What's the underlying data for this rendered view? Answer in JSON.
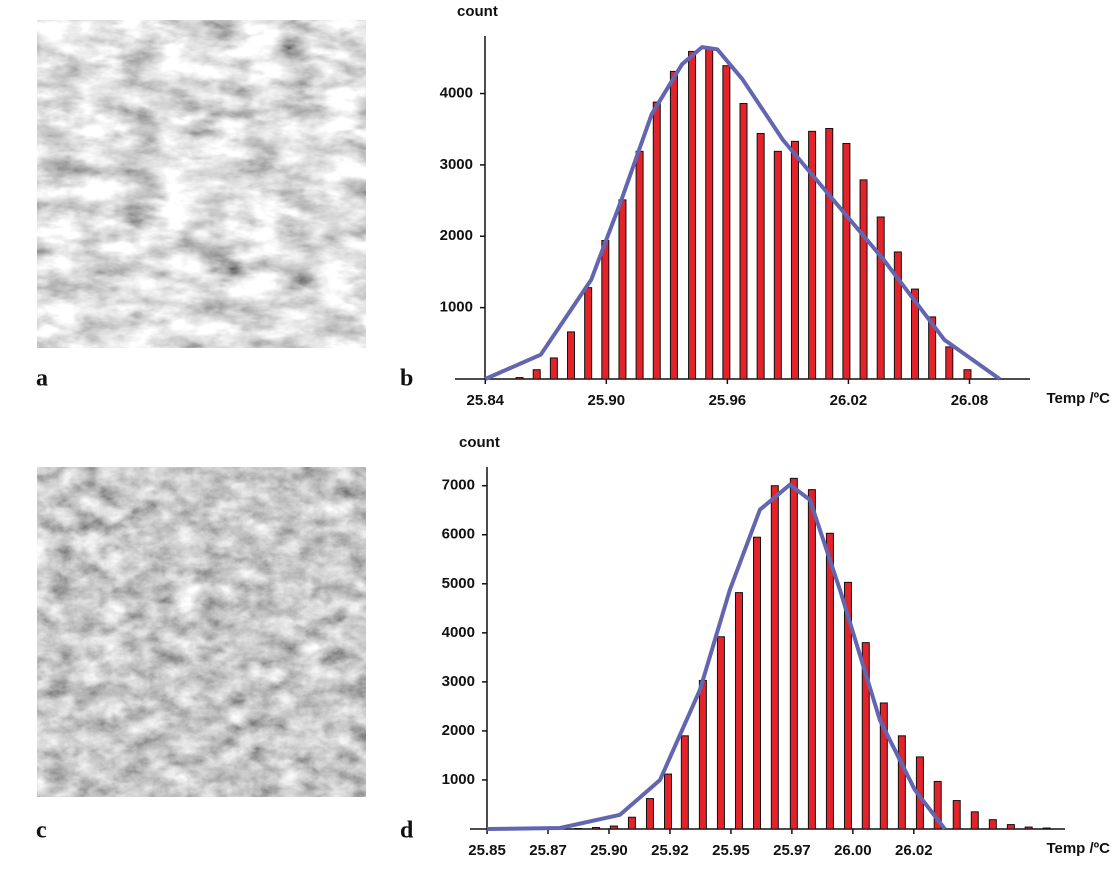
{
  "panel_labels": [
    "a",
    "b",
    "c",
    "d"
  ],
  "chart_data": [
    {
      "type": "bar",
      "ylabel": "count",
      "xlabel": "Temp /ºC",
      "color": "#e2232a",
      "x": [
        25.857,
        25.8655,
        25.874,
        25.8825,
        25.891,
        25.8995,
        25.908,
        25.9165,
        25.925,
        25.9335,
        25.9425,
        25.951,
        25.9595,
        25.968,
        25.9765,
        25.985,
        25.9935,
        26.002,
        26.0105,
        26.019,
        26.0275,
        26.036,
        26.0445,
        26.053,
        26.0615,
        26.07,
        26.079
      ],
      "values": [
        20,
        130,
        295,
        660,
        1280,
        1940,
        2510,
        3190,
        3880,
        4310,
        4590,
        4630,
        4390,
        3860,
        3440,
        3190,
        3330,
        3470,
        3510,
        3300,
        2790,
        2270,
        1780,
        1260,
        870,
        450,
        130
      ],
      "fit": {
        "color": "#6266b0",
        "x": [
          25.84,
          25.8675,
          25.8925,
          25.9075,
          25.9225,
          25.9375,
          25.9475,
          25.955,
          25.9675,
          25.9875,
          26.0125,
          26.0375,
          26.0675,
          26.095
        ],
        "values": [
          0,
          340,
          1390,
          2510,
          3710,
          4410,
          4650,
          4620,
          4200,
          3350,
          2510,
          1670,
          550,
          0
        ]
      },
      "xlim": [
        25.825,
        26.11
      ],
      "ylim": [
        0,
        4750
      ],
      "xticks": [
        25.84,
        {
          "value": 25.9,
          "label": "25.90"
        },
        25.96,
        26.02,
        26.08
      ],
      "yticks": [
        1000,
        2000,
        3000,
        4000
      ]
    },
    {
      "type": "bar",
      "ylabel": "count",
      "xlabel": "Temp /ºC",
      "color": "#e2232a",
      "x": [
        25.8873,
        25.8947,
        25.902,
        25.9094,
        25.9168,
        25.9242,
        25.9311,
        25.9385,
        25.9459,
        25.9533,
        25.9607,
        25.968,
        25.9758,
        25.9832,
        25.9906,
        25.998,
        26.0053,
        26.0127,
        26.0201,
        26.0275,
        26.0348,
        26.0426,
        26.05,
        26.0574,
        26.0648,
        26.0721,
        26.0795
      ],
      "values": [
        10,
        30,
        60,
        240,
        620,
        1120,
        1900,
        3030,
        3920,
        4820,
        5950,
        7000,
        7150,
        6920,
        6030,
        5030,
        3800,
        2570,
        1900,
        1470,
        970,
        580,
        350,
        190,
        90,
        40,
        20
      ],
      "fit": {
        "color": "#6266b0",
        "x": [
          25.85,
          25.8799,
          25.9045,
          25.9209,
          25.9373,
          25.9496,
          25.9619,
          25.9742,
          25.9824,
          25.9947,
          26.0111,
          26.0254,
          26.0377
        ],
        "values": [
          0,
          20,
          290,
          1000,
          2840,
          4880,
          6510,
          7020,
          6710,
          4880,
          2220,
          800,
          0
        ]
      },
      "xlim": [
        25.843,
        26.087
      ],
      "ylim": [
        0,
        7300
      ],
      "xticks": [
        25.85,
        {
          "value": 25.875,
          "label": "25.87"
        },
        {
          "value": 25.9,
          "label": "25.90"
        },
        {
          "value": 25.925,
          "label": "25.92"
        },
        25.95,
        {
          "value": 25.975,
          "label": "25.97"
        },
        {
          "value": 26,
          "label": "26.00"
        },
        {
          "value": 26.025,
          "label": "26.02"
        }
      ],
      "yticks": [
        1000,
        2000,
        3000,
        4000,
        5000,
        6000,
        7000
      ]
    }
  ]
}
